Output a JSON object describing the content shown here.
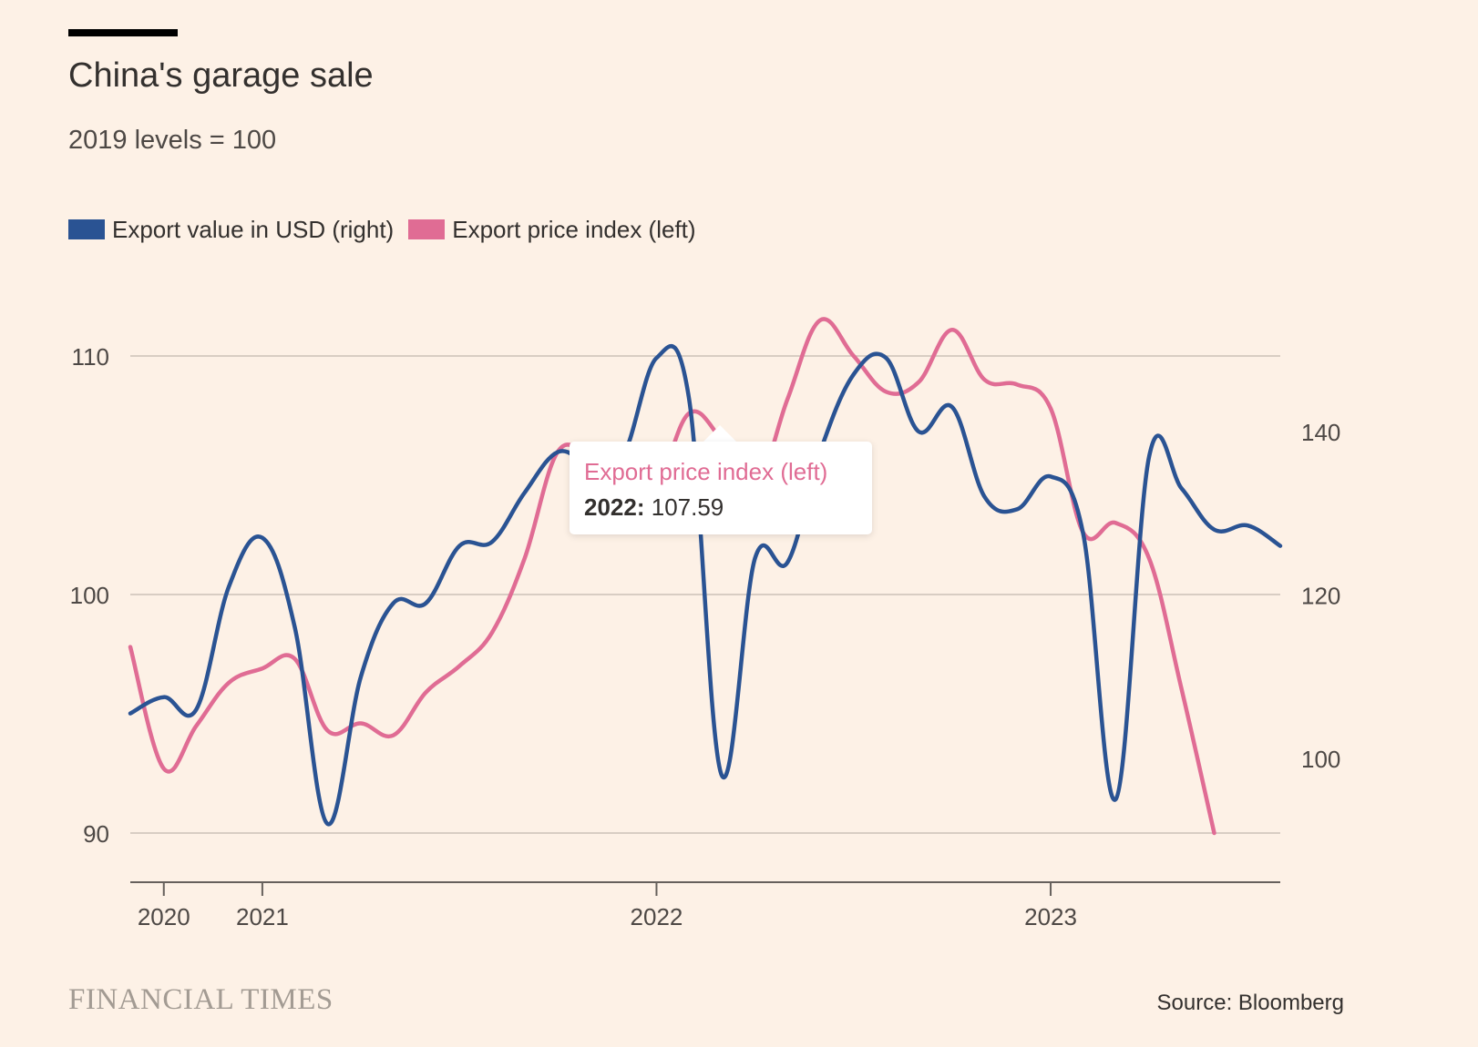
{
  "header": {
    "title": "China's garage sale",
    "subtitle": "2019 levels = 100"
  },
  "legend": [
    {
      "label": "Export value in USD (right)",
      "color": "#2a5393"
    },
    {
      "label": "Export price index (left)",
      "color": "#e06c94"
    }
  ],
  "tooltip": {
    "series": "Export price index (left)",
    "year_label": "2022:",
    "value": "107.59"
  },
  "footer": {
    "brand": "FINANCIAL TIMES",
    "source": "Source: Bloomberg"
  },
  "chart_data": {
    "type": "line",
    "title": "China's garage sale",
    "subtitle": "2019 levels = 100",
    "xlabel": "",
    "ylabel": "",
    "x_tick_labels": [
      "2020",
      "2021",
      "2022",
      "2023"
    ],
    "x_tick_values": [
      2020.0,
      2021.0,
      2025.0,
      2029.0
    ],
    "x_range": [
      2019.66,
      2031.33
    ],
    "left_axis": {
      "range": [
        88,
        112
      ],
      "ticks": [
        90,
        100,
        110
      ],
      "tick_labels": [
        "90",
        "100",
        "110"
      ]
    },
    "right_axis": {
      "range": [
        85,
        153
      ],
      "ticks": [
        100,
        120,
        140
      ],
      "tick_labels": [
        "100",
        "120",
        "140"
      ]
    },
    "grid": true,
    "legend_position": "top-left",
    "series": [
      {
        "name": "Export value in USD (right)",
        "axis": "right",
        "color": "#2a5393",
        "x": [
          2019.66,
          2020.0,
          2020.33,
          2020.66,
          2021.0,
          2021.33,
          2021.66,
          2022.0,
          2022.33,
          2022.66,
          2023.0,
          2023.33,
          2023.66,
          2024.0,
          2024.33,
          2024.66,
          2025.0,
          2025.33,
          2025.66,
          2026.0,
          2026.33,
          2026.66,
          2027.0,
          2027.33,
          2027.66,
          2028.0,
          2028.33,
          2028.66,
          2029.0,
          2029.33,
          2029.66,
          2030.0,
          2030.33,
          2030.66,
          2031.0,
          2031.33
        ],
        "values": [
          105.5,
          107.5,
          106,
          121,
          127,
          116,
          92,
          110,
          119,
          119,
          126,
          126.5,
          132.5,
          137.5,
          136,
          137,
          149,
          144,
          98,
          124.5,
          124,
          137.5,
          147,
          149,
          140,
          143,
          132,
          130.5,
          134.5,
          127.5,
          95,
          137,
          133,
          128,
          128.5,
          126
        ]
      },
      {
        "name": "Export price index (left)",
        "axis": "left",
        "color": "#e06c94",
        "x": [
          2019.66,
          2020.0,
          2020.33,
          2020.66,
          2021.0,
          2021.33,
          2021.66,
          2022.0,
          2022.33,
          2022.66,
          2023.0,
          2023.33,
          2023.66,
          2024.0,
          2024.33,
          2024.66,
          2025.0,
          2025.33,
          2025.66,
          2026.0,
          2026.33,
          2026.66,
          2027.0,
          2027.33,
          2027.66,
          2028.0,
          2028.33,
          2028.66,
          2029.0,
          2029.33,
          2029.66,
          2030.0,
          2030.33,
          2030.66,
          2031.0,
          2031.33
        ],
        "values": [
          97.8,
          92.7,
          94.5,
          96.3,
          96.9,
          97.3,
          94.3,
          94.6,
          94.1,
          95.9,
          97.0,
          98.4,
          101.5,
          106,
          105.5,
          103.8,
          104.5,
          107.6,
          106.5,
          104.5,
          108.2,
          111.5,
          110,
          108.5,
          108.9,
          111.1,
          109.0,
          108.8,
          107.8,
          102.6,
          103.0,
          101.5,
          96.0,
          90.0,
          90.0,
          90.0
        ]
      }
    ]
  }
}
